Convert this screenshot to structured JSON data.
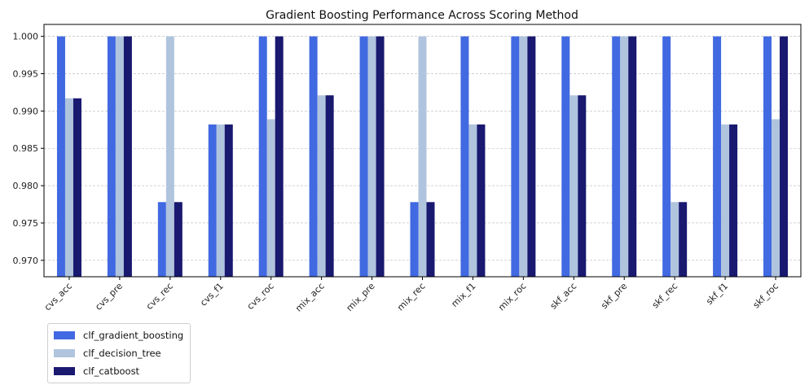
{
  "chart_data": {
    "type": "bar",
    "title": "Gradient Boosting Performance Across Scoring Method",
    "xlabel": "",
    "ylabel": "",
    "categories": [
      "cvs_acc",
      "cvs_pre",
      "cvs_rec",
      "cvs_f1",
      "cvs_roc",
      "mix_acc",
      "mix_pre",
      "mix_rec",
      "mix_f1",
      "mix_roc",
      "skf_acc",
      "skf_pre",
      "skf_rec",
      "skf_f1",
      "skf_roc"
    ],
    "ylim": [
      0.9678,
      1.0016
    ],
    "yticks": [
      "0.970",
      "0.975",
      "0.980",
      "0.985",
      "0.990",
      "0.995",
      "1.000"
    ],
    "grid": "y-dashed",
    "legend_position": "bottom-left, outside plot",
    "series": [
      {
        "name": "clf_gradient_boosting",
        "color": "#4169e1",
        "values": [
          1.0,
          1.0,
          0.9778,
          0.9882,
          1.0,
          1.0,
          1.0,
          0.9778,
          1.0,
          1.0,
          1.0,
          1.0,
          1.0,
          1.0,
          1.0
        ]
      },
      {
        "name": "clf_decision_tree",
        "color": "#b0c4de",
        "values": [
          0.9917,
          1.0,
          1.0,
          0.9882,
          0.9889,
          0.9921,
          1.0,
          1.0,
          0.9882,
          1.0,
          0.9921,
          1.0,
          0.9778,
          0.9882,
          0.9889
        ]
      },
      {
        "name": "clf_catboost",
        "color": "#191970",
        "values": [
          0.9917,
          1.0,
          0.9778,
          0.9882,
          1.0,
          0.9921,
          1.0,
          0.9778,
          0.9882,
          1.0,
          0.9921,
          1.0,
          0.9778,
          0.9882,
          1.0
        ]
      }
    ]
  }
}
